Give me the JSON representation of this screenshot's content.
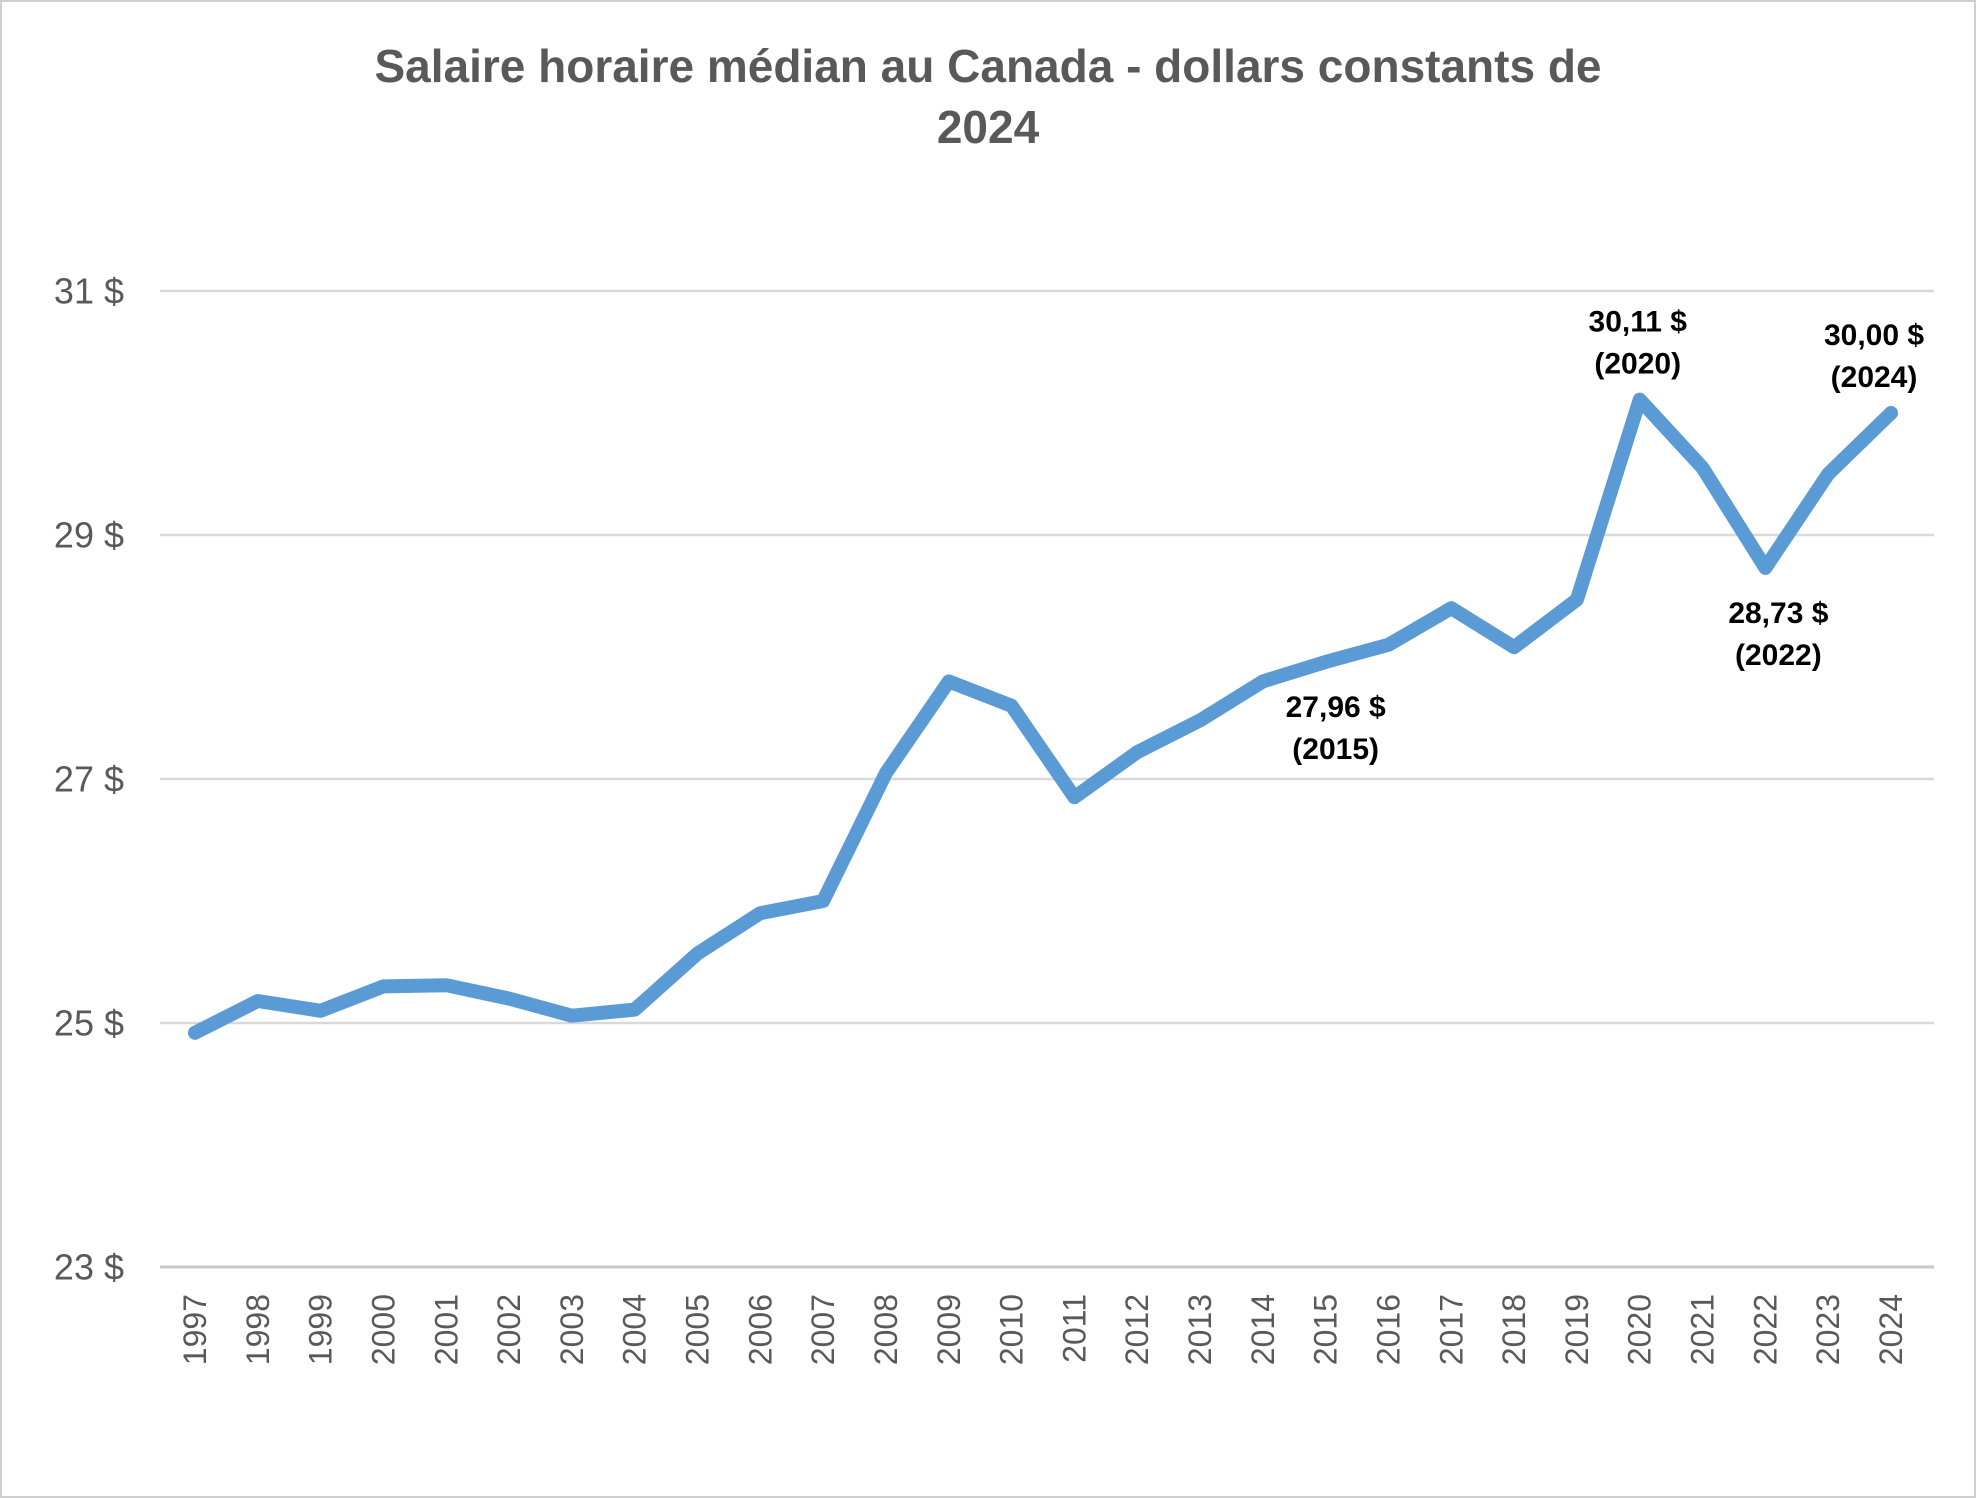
{
  "chart_data": {
    "type": "line",
    "title": "Salaire horaire médian au Canada - dollars constants de 2024",
    "x": [
      "1997",
      "1998",
      "1999",
      "2000",
      "2001",
      "2002",
      "2003",
      "2004",
      "2005",
      "2006",
      "2007",
      "2008",
      "2009",
      "2010",
      "2011",
      "2012",
      "2013",
      "2014",
      "2015",
      "2016",
      "2017",
      "2018",
      "2019",
      "2020",
      "2021",
      "2022",
      "2023",
      "2024"
    ],
    "series": [
      {
        "name": "Salaire horaire médian (dollars constants de 2024)",
        "color": "#5B9BD5",
        "values": [
          24.92,
          25.18,
          25.1,
          25.3,
          25.31,
          25.2,
          25.06,
          25.11,
          25.57,
          25.9,
          26.0,
          27.05,
          27.8,
          27.6,
          26.85,
          27.22,
          27.48,
          27.8,
          27.96,
          28.1,
          28.4,
          28.08,
          28.47,
          30.11,
          29.55,
          28.73,
          29.5,
          30.0
        ]
      }
    ],
    "xlabel": "",
    "ylabel": "",
    "ylim": [
      23,
      31
    ],
    "yticks": [
      23,
      25,
      27,
      29,
      31
    ],
    "ytick_labels": [
      "23 $",
      "25 $",
      "27 $",
      "29 $",
      "31 $"
    ],
    "grid": true,
    "legend": false,
    "annotations": [
      {
        "x": "2015",
        "value": 27.96,
        "lines": [
          "27,96 $",
          "(2015)"
        ],
        "placement": "below",
        "dx": 10
      },
      {
        "x": "2020",
        "value": 30.11,
        "lines": [
          "30,11 $",
          "(2020)"
        ],
        "placement": "above",
        "dx": -2
      },
      {
        "x": "2022",
        "value": 28.73,
        "lines": [
          "28,73 $",
          "(2022)"
        ],
        "placement": "below",
        "dx": 13
      },
      {
        "x": "2024",
        "value": 30.0,
        "lines": [
          "30,00 $",
          "(2024)"
        ],
        "placement": "above",
        "dx": -17
      }
    ]
  },
  "styles": {
    "line_color": "#5B9BD5",
    "grid_color": "#D9D9D9",
    "axis_line_color": "#C9C9C9",
    "axis_text_color": "#595959",
    "title_color": "#595959",
    "annotation_color": "#000000",
    "background": "#FFFFFF",
    "border_color": "#CFCFCF"
  }
}
